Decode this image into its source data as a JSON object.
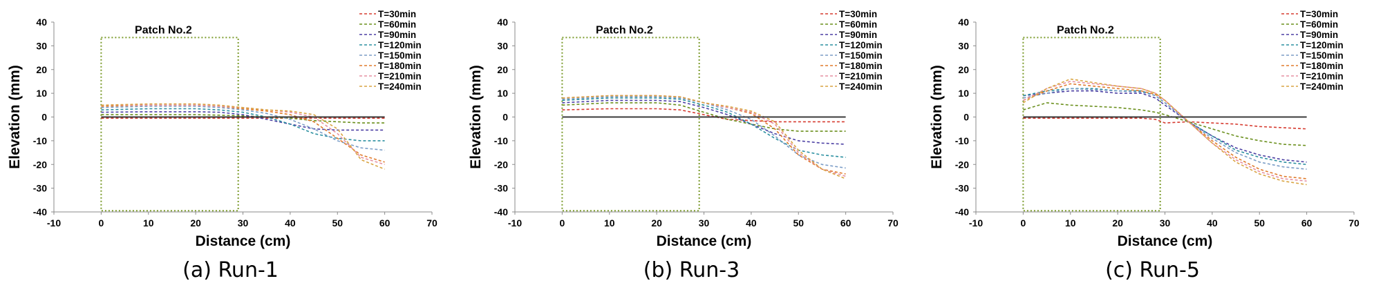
{
  "chart_data": [
    {
      "type": "line",
      "caption": "(a) Run-1",
      "patch_label": "Patch No.2",
      "xlabel": "Distance (cm)",
      "ylabel": "Elevation (mm)",
      "xlim": [
        -10,
        70
      ],
      "ylim": [
        -40,
        40
      ],
      "xticks": [
        -10,
        0,
        10,
        20,
        30,
        40,
        50,
        60,
        70
      ],
      "yticks": [
        -40,
        -30,
        -20,
        -10,
        0,
        10,
        20,
        30,
        40
      ],
      "patch_box": {
        "x": [
          0,
          29
        ],
        "y": [
          -39.5,
          33.5
        ]
      },
      "legend_position": "top-right",
      "baseline": {
        "x": [
          0,
          60
        ],
        "y": [
          0,
          0
        ]
      },
      "series": [
        {
          "name": "T=30min",
          "color": "#d63a2f",
          "x": [
            0,
            10,
            20,
            25,
            30,
            35,
            40,
            45,
            50,
            55,
            60
          ],
          "y": [
            -0.5,
            -0.5,
            -0.5,
            -0.5,
            -0.5,
            -0.5,
            -0.5,
            -0.5,
            -0.5,
            -0.5,
            -0.5
          ]
        },
        {
          "name": "T=60min",
          "color": "#6a8f1c",
          "x": [
            0,
            10,
            20,
            25,
            30,
            35,
            40,
            45,
            50,
            55,
            60
          ],
          "y": [
            1,
            1,
            1,
            0.8,
            0.5,
            0,
            -0.5,
            -1.5,
            -2,
            -2.5,
            -2.5
          ]
        },
        {
          "name": "T=90min",
          "color": "#4b3fa3",
          "x": [
            0,
            10,
            20,
            25,
            30,
            35,
            40,
            45,
            50,
            55,
            60
          ],
          "y": [
            2,
            2.2,
            2.2,
            2,
            1,
            -1,
            -3,
            -5,
            -5.5,
            -5.5,
            -5.5
          ]
        },
        {
          "name": "T=120min",
          "color": "#2a8fa0",
          "x": [
            0,
            10,
            20,
            25,
            30,
            35,
            40,
            45,
            50,
            55,
            60
          ],
          "y": [
            3,
            3.5,
            3.5,
            3,
            2,
            0,
            -3,
            -7,
            -9,
            -10,
            -10
          ]
        },
        {
          "name": "T=150min",
          "color": "#7a9cc6",
          "x": [
            0,
            10,
            20,
            25,
            30,
            35,
            40,
            45,
            50,
            55,
            60
          ],
          "y": [
            4,
            4.5,
            4.5,
            4,
            3,
            1.5,
            -1,
            -5,
            -10,
            -13,
            -14
          ]
        },
        {
          "name": "T=180min",
          "color": "#e07a2a",
          "x": [
            0,
            10,
            20,
            25,
            30,
            35,
            40,
            45,
            50,
            55,
            60
          ],
          "y": [
            4.5,
            5,
            5,
            4.5,
            3.5,
            2.5,
            1,
            -2,
            -9,
            -16,
            -19
          ]
        },
        {
          "name": "T=210min",
          "color": "#e68fa0",
          "x": [
            0,
            10,
            20,
            25,
            30,
            35,
            40,
            45,
            50,
            55,
            60
          ],
          "y": [
            5,
            5,
            5,
            4.5,
            4,
            3,
            2,
            0,
            -7,
            -17,
            -20
          ]
        },
        {
          "name": "T=240min",
          "color": "#d9a441",
          "x": [
            0,
            10,
            20,
            25,
            30,
            35,
            40,
            45,
            50,
            55,
            60
          ],
          "y": [
            5,
            5.5,
            5.5,
            5,
            4,
            3,
            2.5,
            1,
            -5,
            -18,
            -22
          ]
        }
      ]
    },
    {
      "type": "line",
      "caption": "(b) Run-3",
      "patch_label": "Patch No.2",
      "xlabel": "Distance (cm)",
      "ylabel": "Elevation (mm)",
      "xlim": [
        -10,
        70
      ],
      "ylim": [
        -40,
        40
      ],
      "xticks": [
        -10,
        0,
        10,
        20,
        30,
        40,
        50,
        60,
        70
      ],
      "yticks": [
        -40,
        -30,
        -20,
        -10,
        0,
        10,
        20,
        30,
        40
      ],
      "patch_box": {
        "x": [
          0,
          29
        ],
        "y": [
          -39.5,
          33.5
        ]
      },
      "legend_position": "top-right",
      "baseline": {
        "x": [
          0,
          60
        ],
        "y": [
          0,
          0
        ]
      },
      "series": [
        {
          "name": "T=30min",
          "color": "#d63a2f",
          "x": [
            0,
            10,
            20,
            25,
            30,
            35,
            40,
            45,
            50,
            55,
            60
          ],
          "y": [
            3,
            3.5,
            3.5,
            3,
            1,
            -1,
            -1.5,
            -2,
            -2,
            -2,
            -2
          ]
        },
        {
          "name": "T=60min",
          "color": "#6a8f1c",
          "x": [
            0,
            10,
            20,
            25,
            30,
            35,
            40,
            45,
            50,
            55,
            60
          ],
          "y": [
            5,
            6,
            6,
            5,
            2,
            -1,
            -3,
            -5,
            -6,
            -6,
            -6
          ]
        },
        {
          "name": "T=90min",
          "color": "#4b3fa3",
          "x": [
            0,
            10,
            20,
            25,
            30,
            35,
            40,
            45,
            50,
            55,
            60
          ],
          "y": [
            6,
            7,
            7,
            6.5,
            4,
            1,
            -3,
            -7,
            -10,
            -11,
            -11.5
          ]
        },
        {
          "name": "T=120min",
          "color": "#2a8fa0",
          "x": [
            0,
            10,
            20,
            25,
            30,
            35,
            40,
            45,
            50,
            55,
            60
          ],
          "y": [
            7,
            8,
            8,
            7.5,
            5,
            2,
            -3,
            -9,
            -14,
            -16,
            -17
          ]
        },
        {
          "name": "T=150min",
          "color": "#7a9cc6",
          "x": [
            0,
            10,
            20,
            25,
            30,
            35,
            40,
            45,
            50,
            55,
            60
          ],
          "y": [
            7.5,
            8.5,
            8.5,
            8,
            6,
            3,
            -1,
            -8,
            -16,
            -20,
            -21.5
          ]
        },
        {
          "name": "T=180min",
          "color": "#e07a2a",
          "x": [
            0,
            10,
            20,
            25,
            30,
            35,
            40,
            45,
            50,
            55,
            60
          ],
          "y": [
            8,
            9,
            9,
            8.5,
            6,
            4,
            1.5,
            -5,
            -16,
            -22,
            -24
          ]
        },
        {
          "name": "T=210min",
          "color": "#e68fa0",
          "x": [
            0,
            10,
            20,
            25,
            30,
            35,
            40,
            45,
            50,
            55,
            60
          ],
          "y": [
            8,
            9,
            9,
            8.5,
            6,
            4,
            2,
            -3,
            -15,
            -22,
            -25
          ]
        },
        {
          "name": "T=240min",
          "color": "#d9a441",
          "x": [
            0,
            10,
            20,
            25,
            30,
            35,
            40,
            45,
            50,
            55,
            60
          ],
          "y": [
            8,
            9,
            9,
            8.5,
            6,
            4.5,
            2.5,
            -2,
            -14,
            -22,
            -26
          ]
        }
      ]
    },
    {
      "type": "line",
      "caption": "(c) Run-5",
      "patch_label": "Patch No.2",
      "xlabel": "Distance (cm)",
      "ylabel": "Elevation (mm)",
      "xlim": [
        -10,
        70
      ],
      "ylim": [
        -40,
        40
      ],
      "xticks": [
        -10,
        0,
        10,
        20,
        30,
        40,
        50,
        60,
        70
      ],
      "yticks": [
        -40,
        -30,
        -20,
        -10,
        0,
        10,
        20,
        30,
        40
      ],
      "patch_box": {
        "x": [
          0,
          29
        ],
        "y": [
          -39.5,
          33.5
        ]
      },
      "legend_position": "top-right",
      "baseline": {
        "x": [
          0,
          60
        ],
        "y": [
          0,
          0
        ]
      },
      "series": [
        {
          "name": "T=30min",
          "color": "#d63a2f",
          "x": [
            0,
            5,
            10,
            15,
            20,
            25,
            28,
            30,
            35,
            40,
            45,
            50,
            55,
            60
          ],
          "y": [
            -0.5,
            -0.5,
            -0.5,
            -0.5,
            -0.5,
            -0.5,
            -1,
            -2.5,
            -2,
            -2.5,
            -3,
            -4,
            -4.5,
            -5
          ]
        },
        {
          "name": "T=60min",
          "color": "#6a8f1c",
          "x": [
            0,
            5,
            10,
            15,
            20,
            25,
            28,
            30,
            35,
            40,
            45,
            50,
            55,
            60
          ],
          "y": [
            3,
            6,
            5,
            4.5,
            4,
            3,
            2,
            1,
            -2,
            -5,
            -8,
            -10,
            -11.5,
            -12
          ]
        },
        {
          "name": "T=90min",
          "color": "#4b3fa3",
          "x": [
            0,
            5,
            10,
            15,
            20,
            25,
            28,
            30,
            35,
            40,
            45,
            50,
            55,
            60
          ],
          "y": [
            9,
            10,
            11,
            11,
            10,
            10,
            8,
            5,
            -2,
            -8,
            -13,
            -16,
            -18,
            -19
          ]
        },
        {
          "name": "T=120min",
          "color": "#2a8fa0",
          "x": [
            0,
            5,
            10,
            15,
            20,
            25,
            28,
            30,
            35,
            40,
            45,
            50,
            55,
            60
          ],
          "y": [
            9,
            11,
            12,
            12,
            11,
            11,
            9,
            6,
            -2,
            -8,
            -14,
            -17,
            -19,
            -20
          ]
        },
        {
          "name": "T=150min",
          "color": "#7a9cc6",
          "x": [
            0,
            5,
            10,
            15,
            20,
            25,
            28,
            30,
            35,
            40,
            45,
            50,
            55,
            60
          ],
          "y": [
            8,
            10,
            12,
            11.5,
            11,
            10.5,
            9,
            6,
            -2,
            -9,
            -15,
            -19,
            -21,
            -22
          ]
        },
        {
          "name": "T=180min",
          "color": "#e07a2a",
          "x": [
            0,
            5,
            10,
            15,
            20,
            25,
            28,
            30,
            35,
            40,
            45,
            50,
            55,
            60
          ],
          "y": [
            7,
            11,
            14,
            13,
            12,
            11,
            9.5,
            7,
            -2,
            -10,
            -17,
            -22,
            -25,
            -26
          ]
        },
        {
          "name": "T=210min",
          "color": "#e68fa0",
          "x": [
            0,
            5,
            10,
            15,
            20,
            25,
            28,
            30,
            35,
            40,
            45,
            50,
            55,
            60
          ],
          "y": [
            7,
            12,
            15,
            14,
            13,
            12,
            10,
            7,
            -2,
            -11,
            -18,
            -23,
            -26,
            -27
          ]
        },
        {
          "name": "T=240min",
          "color": "#d9a441",
          "x": [
            0,
            5,
            10,
            15,
            20,
            25,
            28,
            30,
            35,
            40,
            45,
            50,
            55,
            60
          ],
          "y": [
            6,
            12,
            16,
            14.5,
            13,
            12,
            10,
            7,
            -2,
            -11,
            -19,
            -24,
            -27,
            -28.5
          ]
        }
      ]
    }
  ]
}
